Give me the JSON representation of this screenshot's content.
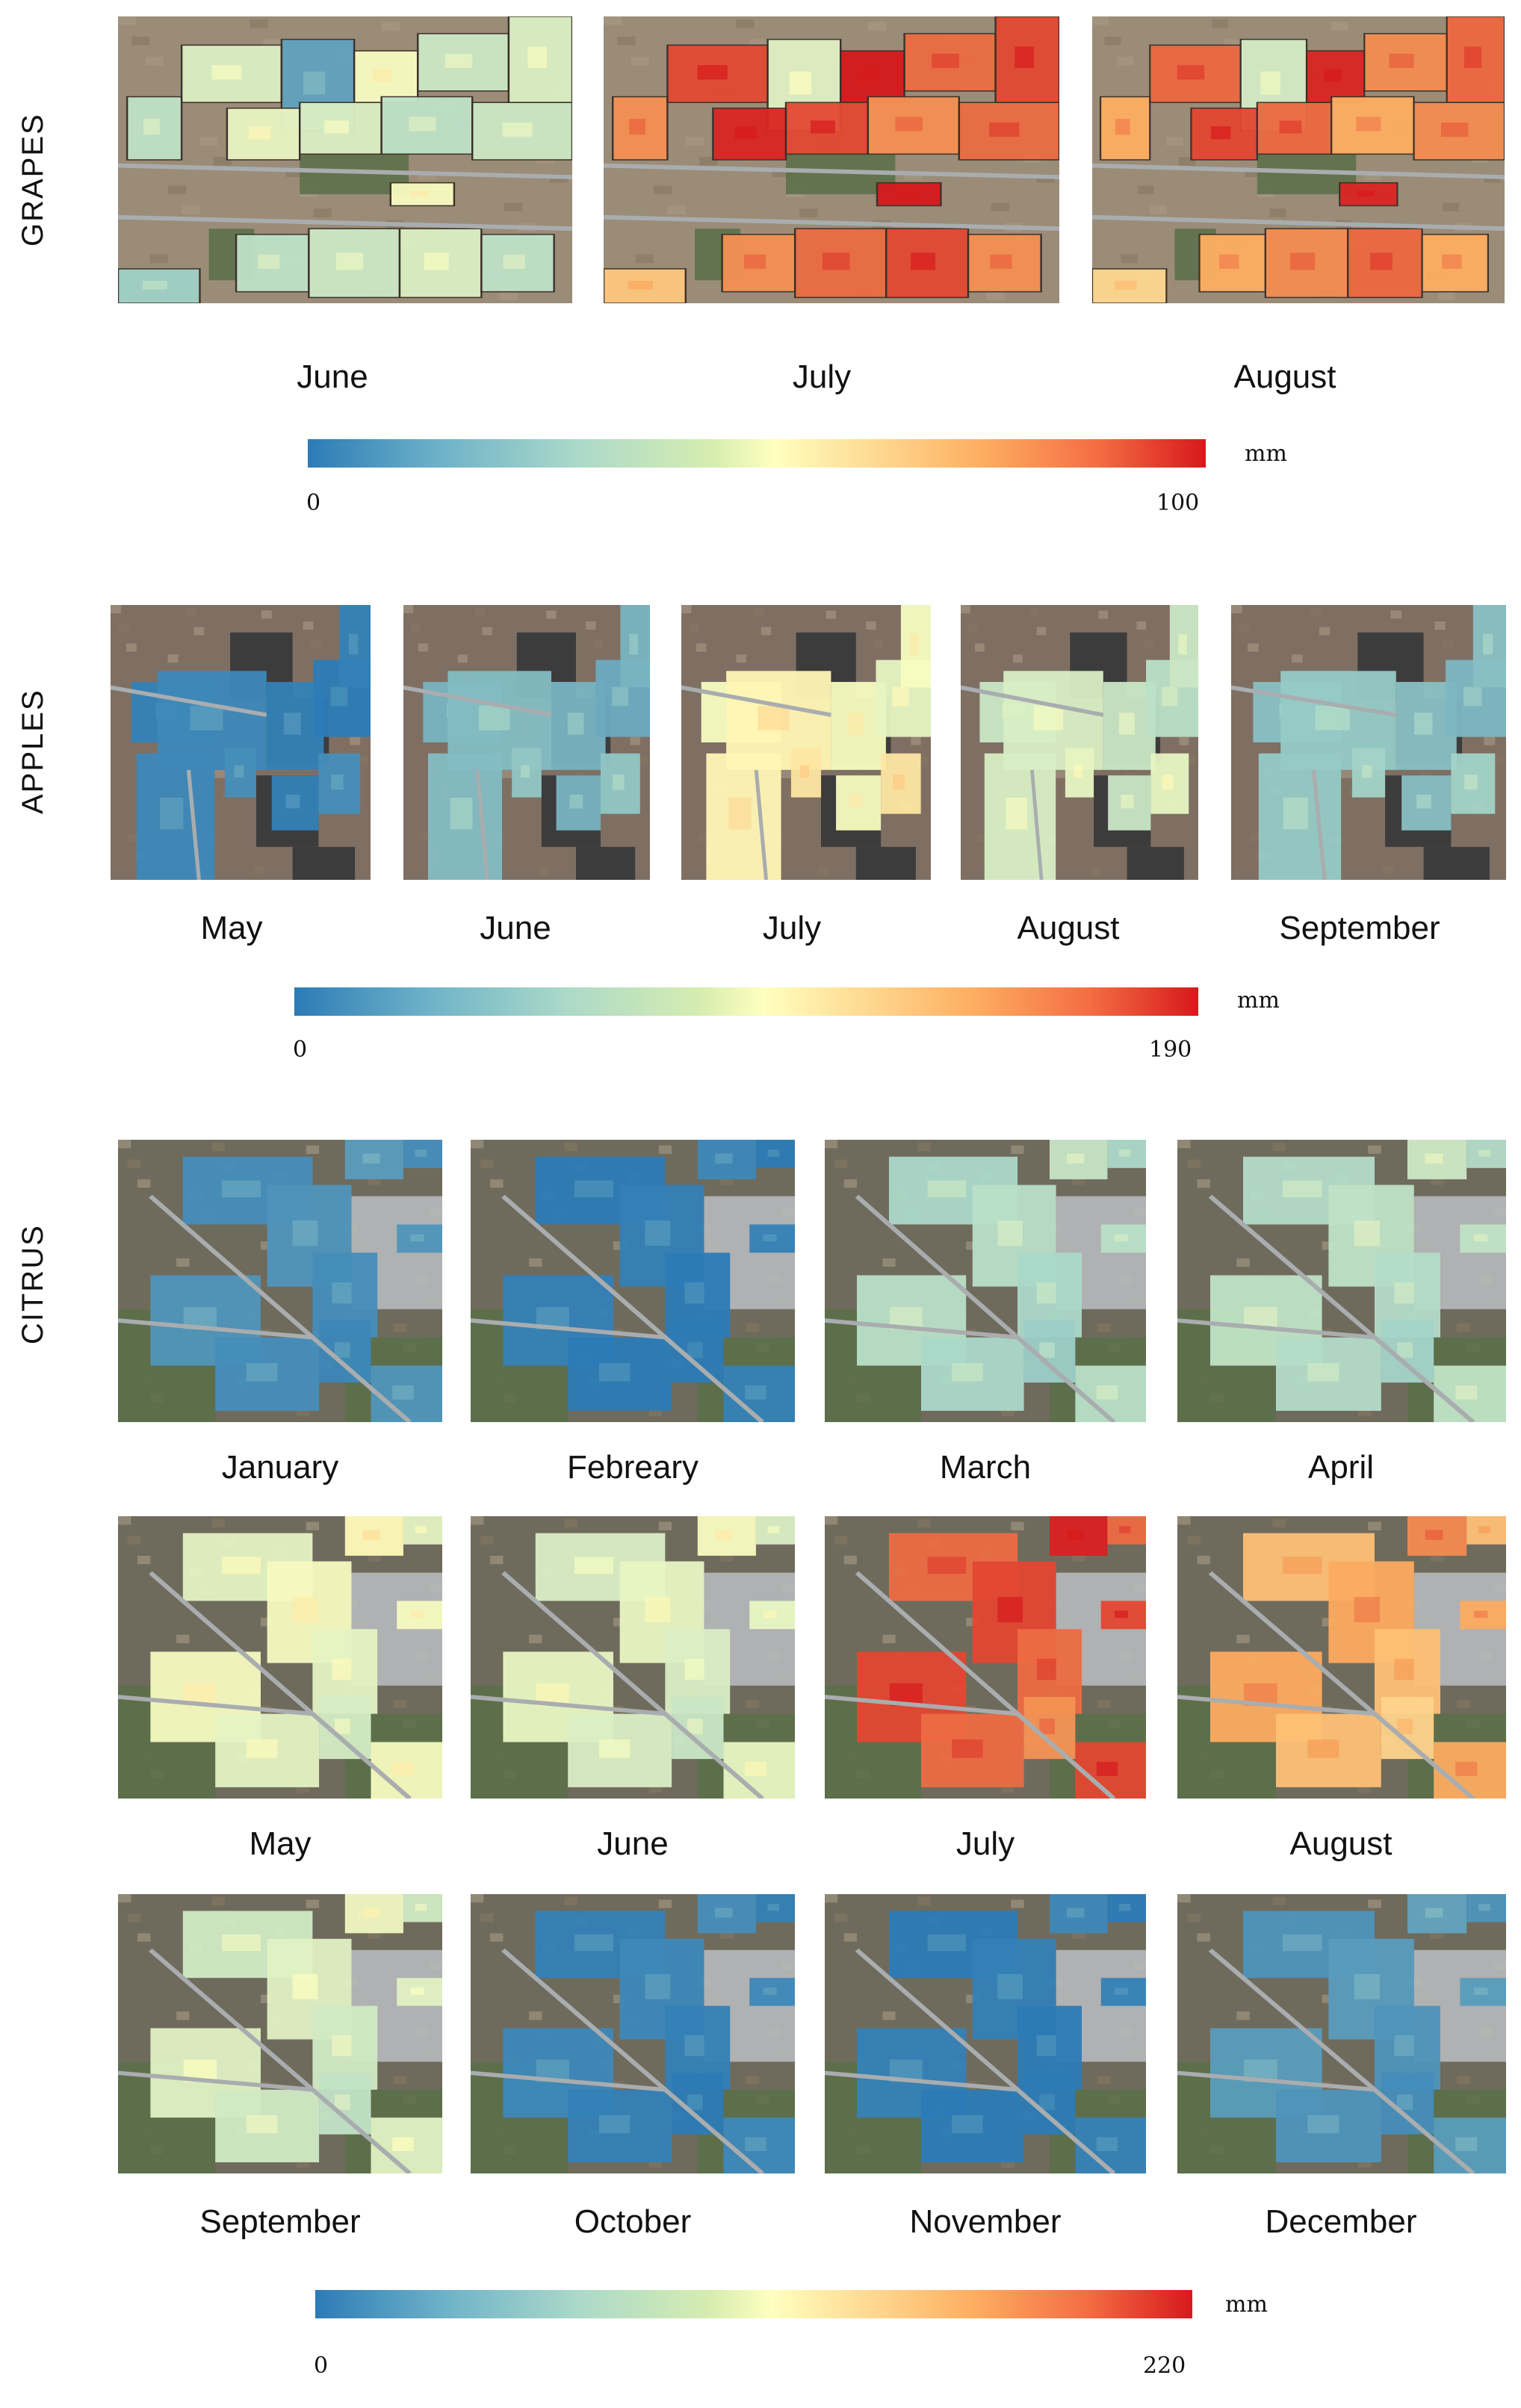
{
  "grapes": {
    "label": "GRAPES",
    "months": [
      "June",
      "July",
      "August"
    ],
    "colorbar": {
      "min": "0",
      "max": "100",
      "unit": "mm"
    }
  },
  "apples": {
    "label": "APPLES",
    "months": [
      "May",
      "June",
      "July",
      "August",
      "September"
    ],
    "colorbar": {
      "min": "0",
      "max": "190",
      "unit": "mm"
    }
  },
  "citrus": {
    "label": "CITRUS",
    "months": [
      "January",
      "Febreary",
      "March",
      "April",
      "May",
      "June",
      "July",
      "August",
      "September",
      "October",
      "November",
      "December"
    ],
    "colorbar": {
      "min": "0",
      "max": "220",
      "unit": "mm"
    }
  },
  "palette": {
    "low": "#2c7bb6",
    "lowmid": "#abd9c9",
    "mid": "#ffffbf",
    "highmid": "#fdae61",
    "high": "#d7191c",
    "ground": "#8d806f",
    "road": "#a9adaf",
    "vegetation": "#5b6f48",
    "dark_field": "#3d3c3d"
  }
}
